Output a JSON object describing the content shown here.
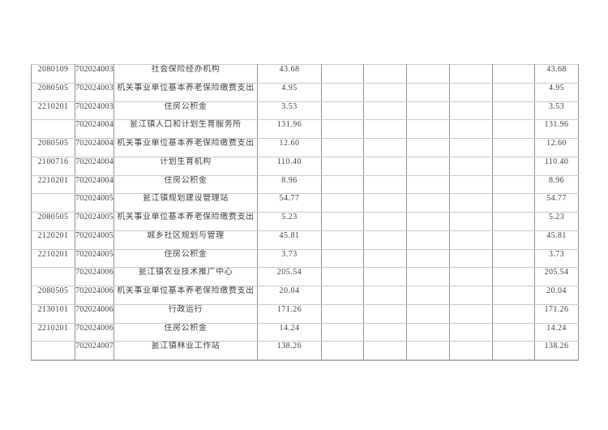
{
  "document": {
    "background_color": "#ffffff",
    "border_vertical_color": "#8f8f8f",
    "border_horizontal_color": "#c9c9c9",
    "text_color": "#3f3f3f"
  },
  "table": {
    "empty_middle_cell_count": 5,
    "rows": [
      {
        "func_code": "2080109",
        "unit_code": "702024003",
        "name": "社会保险经办机构",
        "amount": "43.68",
        "total": "43.68"
      },
      {
        "func_code": "2080505",
        "unit_code": "702024003",
        "name": "机关事业单位基本养老保险缴费支出",
        "amount": "4.95",
        "total": "4.95"
      },
      {
        "func_code": "2210201",
        "unit_code": "702024003",
        "name": "住房公积金",
        "amount": "3.53",
        "total": "3.53"
      },
      {
        "func_code": "",
        "unit_code": "702024004",
        "name": "瓮江镇人口和计划生育服务所",
        "amount": "131.96",
        "total": "131.96"
      },
      {
        "func_code": "2080505",
        "unit_code": "702024004",
        "name": "机关事业单位基本养老保险缴费支出",
        "amount": "12.60",
        "total": "12.60"
      },
      {
        "func_code": "2100716",
        "unit_code": "702024004",
        "name": "计划生育机构",
        "amount": "110.40",
        "total": "110.40"
      },
      {
        "func_code": "2210201",
        "unit_code": "702024004",
        "name": "住房公积金",
        "amount": "8.96",
        "total": "8.96"
      },
      {
        "func_code": "",
        "unit_code": "702024005",
        "name": "瓮江镇规划建设管理站",
        "amount": "54.77",
        "total": "54.77"
      },
      {
        "func_code": "2080505",
        "unit_code": "702024005",
        "name": "机关事业单位基本养老保险缴费支出",
        "amount": "5.23",
        "total": "5.23"
      },
      {
        "func_code": "2120201",
        "unit_code": "702024005",
        "name": "城乡社区规划与管理",
        "amount": "45.81",
        "total": "45.81"
      },
      {
        "func_code": "2210201",
        "unit_code": "702024005",
        "name": "住房公积金",
        "amount": "3.73",
        "total": "3.73"
      },
      {
        "func_code": "",
        "unit_code": "702024006",
        "name": "瓮江镇农业技术推广中心",
        "amount": "205.54",
        "total": "205.54"
      },
      {
        "func_code": "2080505",
        "unit_code": "702024006",
        "name": "机关事业单位基本养老保险缴费支出",
        "amount": "20.04",
        "total": "20.04"
      },
      {
        "func_code": "2130101",
        "unit_code": "702024006",
        "name": "行政运行",
        "amount": "171.26",
        "total": "171.26"
      },
      {
        "func_code": "2210201",
        "unit_code": "702024006",
        "name": "住房公积金",
        "amount": "14.24",
        "total": "14.24"
      },
      {
        "func_code": "",
        "unit_code": "702024007",
        "name": "瓮江镇林业工作站",
        "amount": "138.26",
        "total": "138.26"
      }
    ]
  }
}
